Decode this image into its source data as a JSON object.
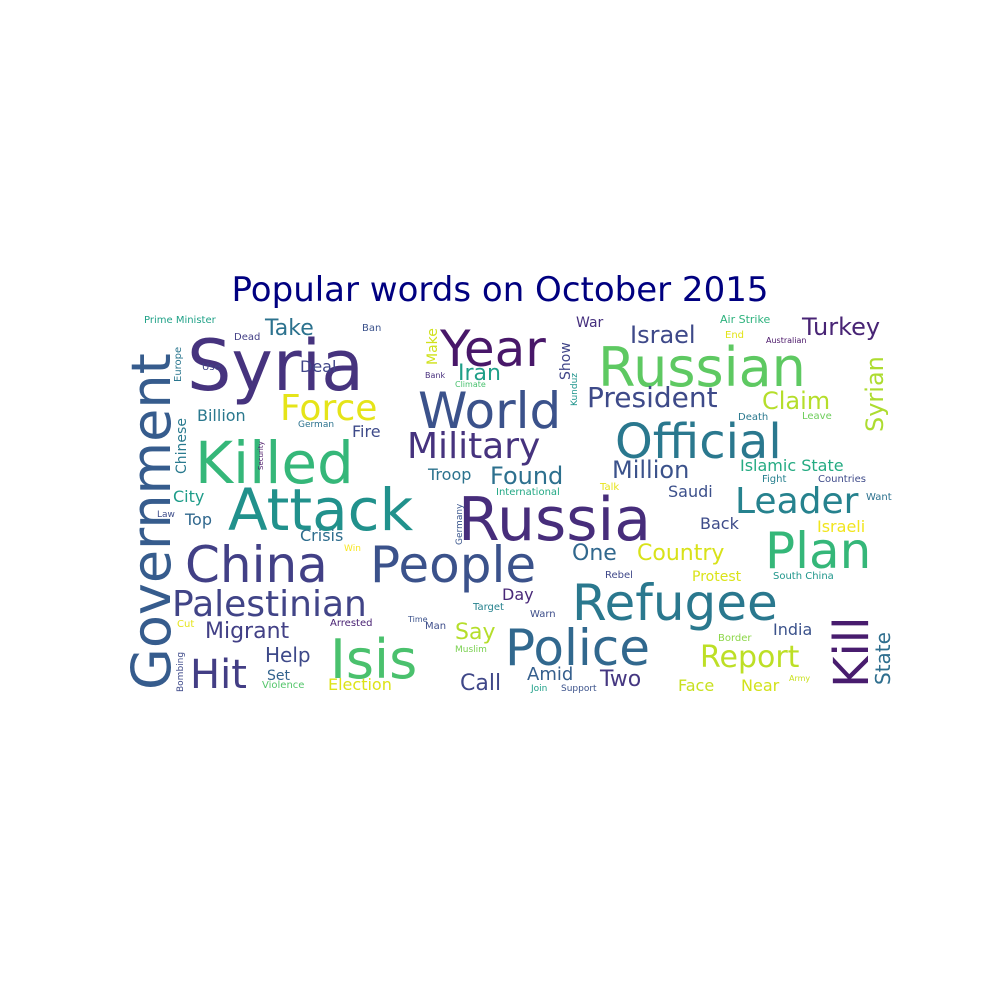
{
  "title": "Popular words on October 2015",
  "title_color": "#000080",
  "words": [
    {
      "text": "Syria",
      "color": "#46337e"
    },
    {
      "text": "Government",
      "color": "#365c8d"
    },
    {
      "text": "Year",
      "color": "#481769"
    },
    {
      "text": "Russian",
      "color": "#5ec962"
    },
    {
      "text": "Killed",
      "color": "#35b779"
    },
    {
      "text": "Official",
      "color": "#2a788e"
    },
    {
      "text": "World",
      "color": "#3b528b"
    },
    {
      "text": "Attack",
      "color": "#21918c"
    },
    {
      "text": "Russia",
      "color": "#472d7b"
    },
    {
      "text": "Force",
      "color": "#e5e419"
    },
    {
      "text": "Military",
      "color": "#46337e"
    },
    {
      "text": "China",
      "color": "#424086"
    },
    {
      "text": "People",
      "color": "#3b528b"
    },
    {
      "text": "Plan",
      "color": "#35b779"
    },
    {
      "text": "Refugee",
      "color": "#2a788e"
    },
    {
      "text": "Leader",
      "color": "#26828e"
    },
    {
      "text": "Palestinian",
      "color": "#414487"
    },
    {
      "text": "Police",
      "color": "#31688e"
    },
    {
      "text": "Isis",
      "color": "#4ac16d"
    },
    {
      "text": "Kill",
      "color": "#481c6e"
    },
    {
      "text": "Hit",
      "color": "#433e85"
    },
    {
      "text": "President",
      "color": "#3e4a89"
    },
    {
      "text": "Report",
      "color": "#bddf26"
    },
    {
      "text": "Take",
      "color": "#2c728e"
    },
    {
      "text": "Israel",
      "color": "#3e4989"
    },
    {
      "text": "Turkey",
      "color": "#482475"
    },
    {
      "text": "Iran",
      "color": "#1f9f88"
    },
    {
      "text": "Claim",
      "color": "#b5de2b"
    },
    {
      "text": "Syrian",
      "color": "#addc30"
    },
    {
      "text": "Million",
      "color": "#3b528b"
    },
    {
      "text": "Found",
      "color": "#2d708e"
    },
    {
      "text": "Country",
      "color": "#d8e219"
    },
    {
      "text": "One",
      "color": "#31688e"
    },
    {
      "text": "Migrant",
      "color": "#424086"
    },
    {
      "text": "Say",
      "color": "#b5de2b"
    },
    {
      "text": "Help",
      "color": "#3e4989"
    },
    {
      "text": "Call",
      "color": "#3f4788"
    },
    {
      "text": "Two",
      "color": "#453781"
    },
    {
      "text": "Amid",
      "color": "#355f8d"
    },
    {
      "text": "Election",
      "color": "#dde318"
    },
    {
      "text": "State",
      "color": "#2e6e8e"
    },
    {
      "text": "India",
      "color": "#3b528b"
    },
    {
      "text": "Face",
      "color": "#c8e020"
    },
    {
      "text": "Near",
      "color": "#d2e21b"
    },
    {
      "text": "Billion",
      "color": "#2a788e"
    },
    {
      "text": "Deal",
      "color": "#404588"
    },
    {
      "text": "Fire",
      "color": "#3e4a89"
    },
    {
      "text": "Troop",
      "color": "#2c738e"
    },
    {
      "text": "Crisis",
      "color": "#2e6d8e"
    },
    {
      "text": "Top",
      "color": "#31688e"
    },
    {
      "text": "City",
      "color": "#1e9c89"
    },
    {
      "text": "Day",
      "color": "#482878"
    },
    {
      "text": "Back",
      "color": "#3e4c8a"
    },
    {
      "text": "Israeli",
      "color": "#f1e51d"
    },
    {
      "text": "Saudi",
      "color": "#3c508b"
    },
    {
      "text": "Islamic State",
      "color": "#25ab82"
    },
    {
      "text": "Protest",
      "color": "#dae319"
    },
    {
      "text": "Set",
      "color": "#33638d"
    },
    {
      "text": "War",
      "color": "#46307e"
    },
    {
      "text": "Show",
      "color": "#404588"
    },
    {
      "text": "Make",
      "color": "#d0e11c"
    },
    {
      "text": "Chinese",
      "color": "#297a8e"
    },
    {
      "text": "Europe",
      "color": "#2a768e"
    },
    {
      "text": "Prime Minister",
      "color": "#1fa187"
    },
    {
      "text": "Dead",
      "color": "#423f85"
    },
    {
      "text": "Ban",
      "color": "#3b528b"
    },
    {
      "text": "Use",
      "color": "#404588"
    },
    {
      "text": "Bank",
      "color": "#472f7d"
    },
    {
      "text": "Climate",
      "color": "#48c16e"
    },
    {
      "text": "Security",
      "color": "#471164"
    },
    {
      "text": "German",
      "color": "#2c728e"
    },
    {
      "text": "Law",
      "color": "#3d4d8a"
    },
    {
      "text": "Air Strike",
      "color": "#2db27d"
    },
    {
      "text": "End",
      "color": "#e2e418"
    },
    {
      "text": "Australian",
      "color": "#481467"
    },
    {
      "text": "Death",
      "color": "#2a788e"
    },
    {
      "text": "Leave",
      "color": "#6ccd5a"
    },
    {
      "text": "Fight",
      "color": "#27808e"
    },
    {
      "text": "Countries",
      "color": "#3e4a89"
    },
    {
      "text": "Want",
      "color": "#2c718e"
    },
    {
      "text": "Talk",
      "color": "#e7e419"
    },
    {
      "text": "International",
      "color": "#22a884"
    },
    {
      "text": "Germany",
      "color": "#39558c"
    },
    {
      "text": "Kunduz",
      "color": "#1f948c"
    },
    {
      "text": "Win",
      "color": "#f8e621"
    },
    {
      "text": "Rebel",
      "color": "#3f4889"
    },
    {
      "text": "South China",
      "color": "#1f968b"
    },
    {
      "text": "Target",
      "color": "#26828e"
    },
    {
      "text": "Warn",
      "color": "#3d4e8a"
    },
    {
      "text": "Arrested",
      "color": "#482173"
    },
    {
      "text": "Man",
      "color": "#3d4d8a"
    },
    {
      "text": "Muslim",
      "color": "#7ad151"
    },
    {
      "text": "Time",
      "color": "#3b528b"
    },
    {
      "text": "Cut",
      "color": "#e5e419"
    },
    {
      "text": "Border",
      "color": "#8bd646"
    },
    {
      "text": "Bombing",
      "color": "#3e4a89"
    },
    {
      "text": "Violence",
      "color": "#52c569"
    },
    {
      "text": "Join",
      "color": "#1fa088"
    },
    {
      "text": "Support",
      "color": "#3b528b"
    },
    {
      "text": "Army",
      "color": "#cae11f"
    }
  ]
}
